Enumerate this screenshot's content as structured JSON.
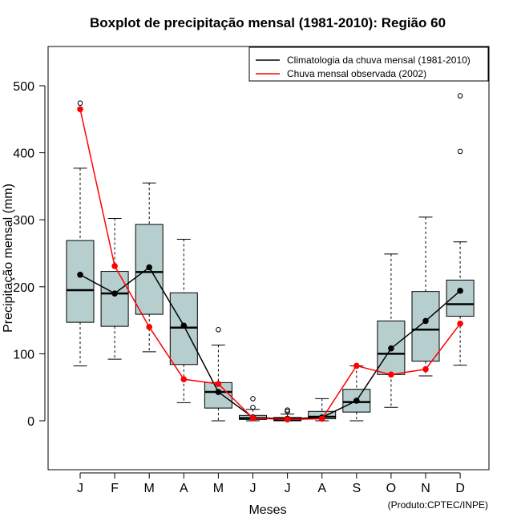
{
  "chart_data": {
    "type": "boxplot",
    "title": "Boxplot de precipitação mensal (1981-2010): Região 60",
    "xlabel": "Meses",
    "ylabel": "Precipitação mensal (mm)",
    "credit": "(Produto:CPTEC/INPE)",
    "ylim": [
      -73,
      573
    ],
    "yticks": [
      0,
      100,
      200,
      300,
      400,
      500
    ],
    "categories": [
      "J",
      "F",
      "M",
      "A",
      "M",
      "J",
      "J",
      "A",
      "S",
      "O",
      "N",
      "D"
    ],
    "boxes": [
      {
        "whisker_low": 82,
        "q1": 147,
        "median": 195,
        "q3": 269,
        "whisker_high": 377,
        "outliers": [
          474
        ]
      },
      {
        "whisker_low": 92,
        "q1": 141,
        "median": 190,
        "q3": 223,
        "whisker_high": 302,
        "outliers": []
      },
      {
        "whisker_low": 103,
        "q1": 159,
        "median": 222,
        "q3": 293,
        "whisker_high": 355,
        "outliers": []
      },
      {
        "whisker_low": 27,
        "q1": 84,
        "median": 139,
        "q3": 191,
        "whisker_high": 271,
        "outliers": []
      },
      {
        "whisker_low": 0,
        "q1": 19,
        "median": 43,
        "q3": 57,
        "whisker_high": 113,
        "outliers": [
          136
        ]
      },
      {
        "whisker_low": 0,
        "q1": 2,
        "median": 4,
        "q3": 8,
        "whisker_high": 17,
        "outliers": [
          20,
          33
        ]
      },
      {
        "whisker_low": 0,
        "q1": 0,
        "median": 2,
        "q3": 5,
        "whisker_high": 10,
        "outliers": [
          14,
          16
        ]
      },
      {
        "whisker_low": 0,
        "q1": 3,
        "median": 6,
        "q3": 14,
        "whisker_high": 33,
        "outliers": []
      },
      {
        "whisker_low": 0,
        "q1": 13,
        "median": 28,
        "q3": 47,
        "whisker_high": 82,
        "outliers": []
      },
      {
        "whisker_low": 20,
        "q1": 69,
        "median": 100,
        "q3": 149,
        "whisker_high": 249,
        "outliers": []
      },
      {
        "whisker_low": 67,
        "q1": 89,
        "median": 136,
        "q3": 193,
        "whisker_high": 304,
        "outliers": []
      },
      {
        "whisker_low": 83,
        "q1": 156,
        "median": 174,
        "q3": 210,
        "whisker_high": 267,
        "outliers": [
          402,
          485
        ]
      }
    ],
    "series": [
      {
        "name": "Climatologia da chuva mensal (1981-2010)",
        "color": "#000000",
        "values": [
          218,
          190,
          229,
          142,
          43,
          5,
          3,
          5,
          30,
          108,
          149,
          194
        ]
      },
      {
        "name": "Chuva mensal observada (2002)",
        "color": "#ff0000",
        "values": [
          465,
          231,
          140,
          62,
          55,
          4,
          2,
          3,
          82,
          69,
          77,
          145
        ]
      }
    ],
    "box_fill": "#b6cfce",
    "legend_position": "top-right"
  }
}
